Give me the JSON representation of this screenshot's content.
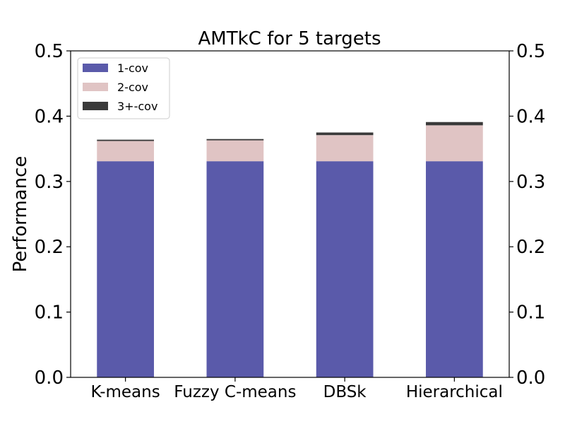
{
  "chart_data": {
    "type": "bar",
    "stacked": true,
    "title": "AMTkC for 5 targets",
    "xlabel": "",
    "ylabel": "Performance",
    "ylim": [
      0,
      0.5
    ],
    "yticks": [
      "0.0",
      "0.1",
      "0.2",
      "0.3",
      "0.4",
      "0.5"
    ],
    "right_axis_ticks": true,
    "grid": false,
    "legend_position": "top-left",
    "categories": [
      "K-means",
      "Fuzzy C-means",
      "DBSk",
      "Hierarchical"
    ],
    "series": [
      {
        "name": "1-cov",
        "color": "#5a5aaa",
        "values": [
          0.331,
          0.331,
          0.331,
          0.331
        ]
      },
      {
        "name": "2-cov",
        "color": "#e0c4c4",
        "values": [
          0.031,
          0.032,
          0.04,
          0.055
        ]
      },
      {
        "name": "3+-cov",
        "color": "#3a3a3a",
        "values": [
          0.002,
          0.002,
          0.004,
          0.005
        ]
      }
    ]
  }
}
